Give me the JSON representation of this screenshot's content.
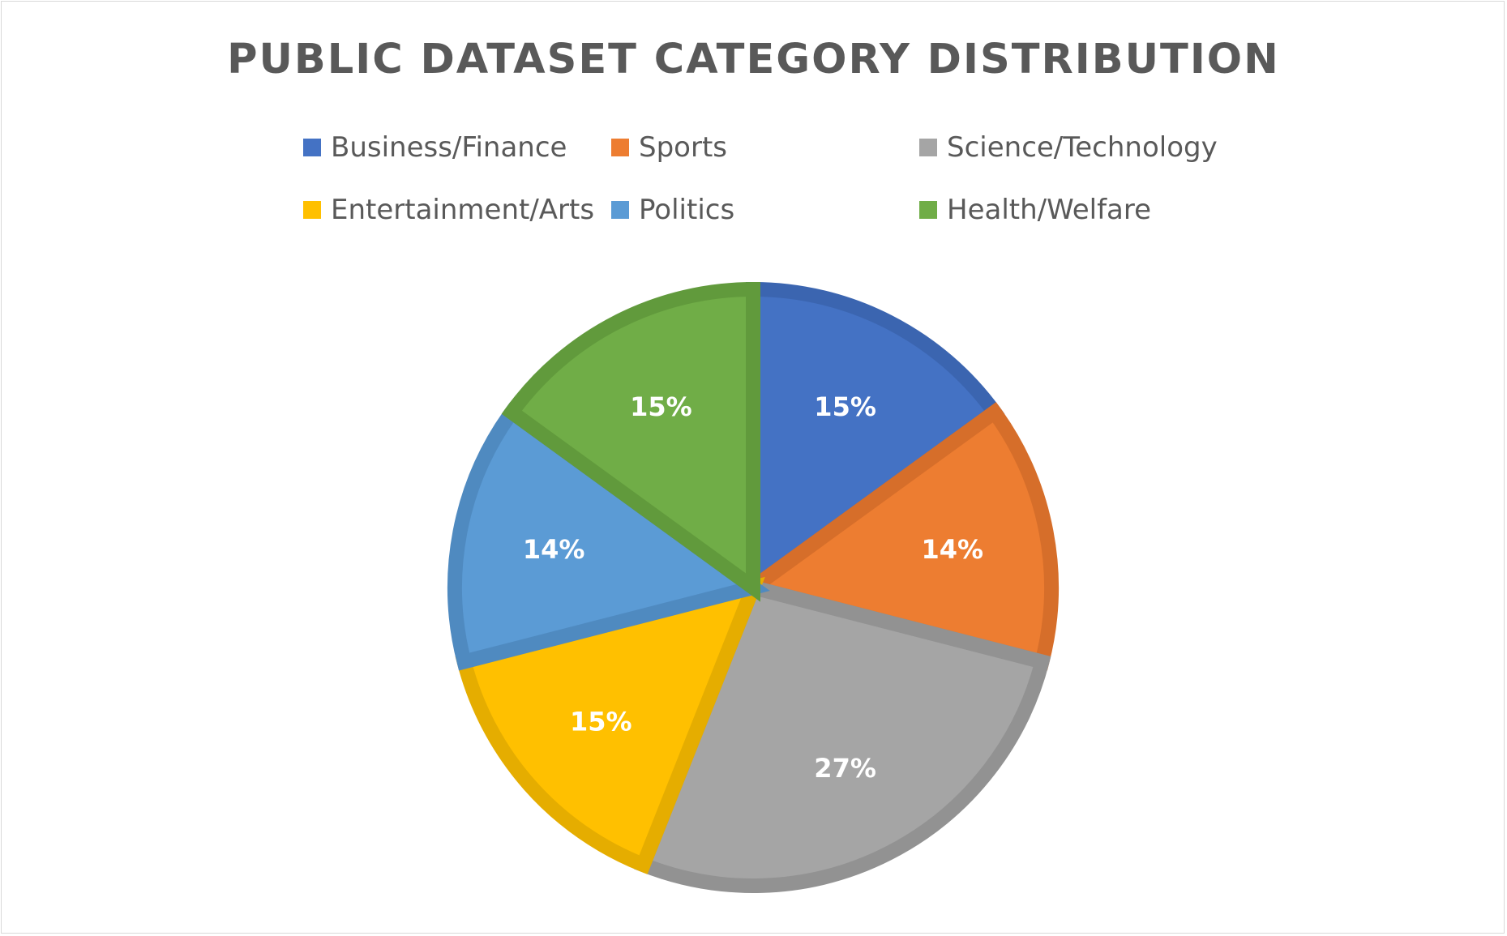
{
  "chart_data": {
    "type": "pie",
    "title": "PUBLIC DATASET CATEGORY DISTRIBUTION",
    "categories": [
      "Business/Finance",
      "Sports",
      "Science/Technology",
      "Entertainment/Arts",
      "Politics",
      "Health/Welfare"
    ],
    "values": [
      15,
      14,
      27,
      15,
      14,
      15
    ],
    "data_labels": [
      "15%",
      "14%",
      "27%",
      "15%",
      "14%",
      "15%"
    ],
    "colors": [
      "#4472C4",
      "#ED7D31",
      "#A5A5A5",
      "#FFC000",
      "#5B9BD5",
      "#70AD47"
    ],
    "border_colors": [
      "#3B65B0",
      "#D66E2A",
      "#929292",
      "#E5AD00",
      "#4F8AC0",
      "#619A3C"
    ],
    "legend_position": "top",
    "start_angle": "12 o'clock",
    "direction": "clockwise"
  }
}
